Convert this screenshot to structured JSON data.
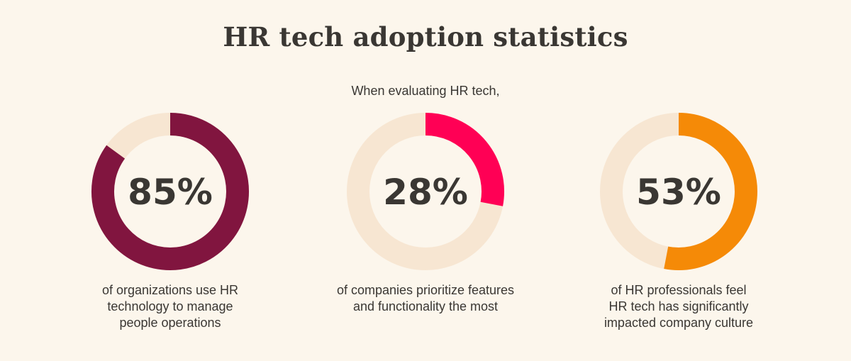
{
  "title": "HR tech adoption statistics",
  "subtitle": "When evaluating HR tech,",
  "colors": {
    "background": "#fcf6ec",
    "track": "#f7e6d2",
    "text": "#3a3733"
  },
  "chart_data": [
    {
      "type": "pie",
      "label": "85%",
      "value": 85,
      "color": "#81153f",
      "caption_lines": [
        "of organizations use HR",
        "technology to manage",
        "people operations"
      ]
    },
    {
      "type": "pie",
      "label": "28%",
      "value": 28,
      "color": "#ff0055",
      "caption_lines": [
        "of companies prioritize features",
        "and functionality the most"
      ]
    },
    {
      "type": "pie",
      "label": "53%",
      "value": 53,
      "color": "#f58a07",
      "caption_lines": [
        "of HR professionals feel",
        "HR tech has significantly",
        "impacted company culture"
      ]
    }
  ]
}
